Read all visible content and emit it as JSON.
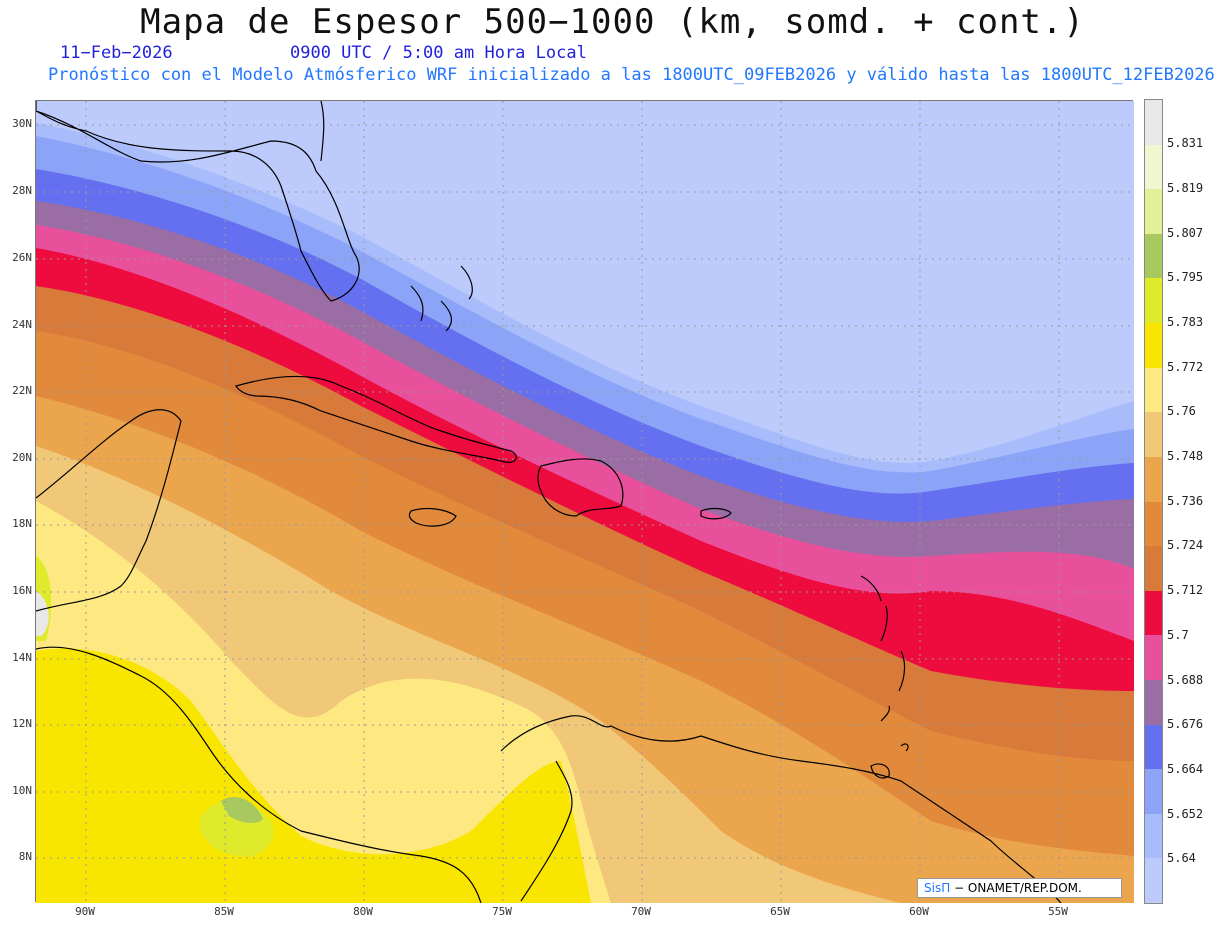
{
  "header": {
    "title": "Mapa de Espesor 500−1000 (km, somd. + cont.)",
    "date": "11−Feb−2026",
    "time": "0900 UTC / 5:00 am Hora Local",
    "subtitle": "Pronóstico con el Modelo Atmósferico WRF inicializado a las 1800UTC_09FEB2026 y válido hasta las  1800UTC_12FEB2026"
  },
  "axes": {
    "lat_labels": [
      "30N",
      "28N",
      "26N",
      "24N",
      "22N",
      "20N",
      "18N",
      "16N",
      "14N",
      "12N",
      "10N",
      "8N"
    ],
    "lon_labels": [
      "90W",
      "85W",
      "80W",
      "75W",
      "70W",
      "65W",
      "60W",
      "55W"
    ]
  },
  "colorbar": {
    "levels": [
      "5.831",
      "5.819",
      "5.807",
      "5.795",
      "5.783",
      "5.772",
      "5.76",
      "5.748",
      "5.736",
      "5.724",
      "5.712",
      "5.7",
      "5.688",
      "5.676",
      "5.664",
      "5.652",
      "5.64"
    ],
    "colors": [
      "#e8e8e8",
      "#f0f6d0",
      "#e2f09a",
      "#a8c860",
      "#e0ea2c",
      "#f8e600",
      "#fde882",
      "#f0c878",
      "#eba54c",
      "#e28a3c",
      "#d87a3a",
      "#ee0b3e",
      "#e8509b",
      "#9a6ea4",
      "#6470f0",
      "#8ca4f8",
      "#a8bcfc",
      "#bccafc"
    ]
  },
  "credit": {
    "brand": "SisΠ",
    "text": "− ONAMET/REP.DOM."
  }
}
